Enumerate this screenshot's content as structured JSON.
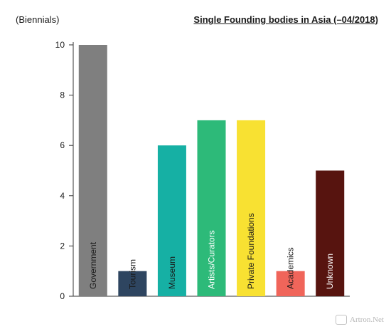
{
  "header": {
    "unit_label": "(Biennials)",
    "title": "Single Founding bodies in Asia (–04/2018)"
  },
  "watermark": {
    "text": "Artron.Net",
    "logo": "artron-logo"
  },
  "chart_data": {
    "type": "bar",
    "title": "Single Founding bodies in Asia (–04/2018)",
    "ylabel": "(Biennials)",
    "xlabel": "",
    "ylim": [
      0,
      10
    ],
    "yticks": [
      0,
      2,
      4,
      6,
      8,
      10
    ],
    "grid": false,
    "categories": [
      "Government",
      "Tourism",
      "Museum",
      "Artists/Curators",
      "Private Foundations",
      "Academics",
      "Unknown"
    ],
    "values": [
      10,
      1,
      6,
      7,
      7,
      1,
      5
    ],
    "colors": [
      "#7f7f7f",
      "#2e4560",
      "#16b0a4",
      "#2dba79",
      "#f8e132",
      "#f0655a",
      "#57140f"
    ],
    "label_colors": [
      "#1a1a1a",
      "#1a1a1a",
      "#1a1a1a",
      "#ffffff",
      "#1a1a1a",
      "#1a1a1a",
      "#ffffff"
    ]
  }
}
